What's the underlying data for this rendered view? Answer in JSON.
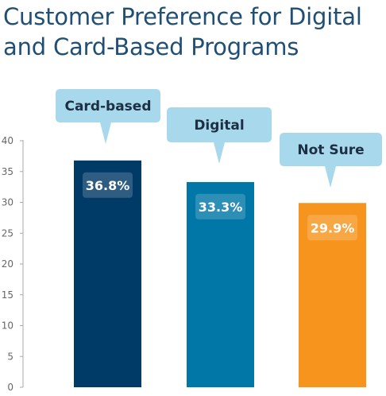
{
  "chart_data": {
    "type": "bar",
    "title": "Customer Preference for Digital\nand Card-Based Programs",
    "categories": [
      "Card-based",
      "Digital",
      "Not Sure"
    ],
    "values": [
      36.8,
      33.3,
      29.9
    ],
    "value_labels": [
      "36.8%",
      "33.3%",
      "29.9%"
    ],
    "colors": [
      "#003a66",
      "#0077a6",
      "#f7941d"
    ],
    "callout_color": "#a8d8ec",
    "yticks": [
      0,
      5,
      10,
      15,
      20,
      25,
      30,
      35,
      40
    ],
    "ylim": [
      0,
      40
    ],
    "xlabel": "",
    "ylabel": "",
    "grid": false
  }
}
